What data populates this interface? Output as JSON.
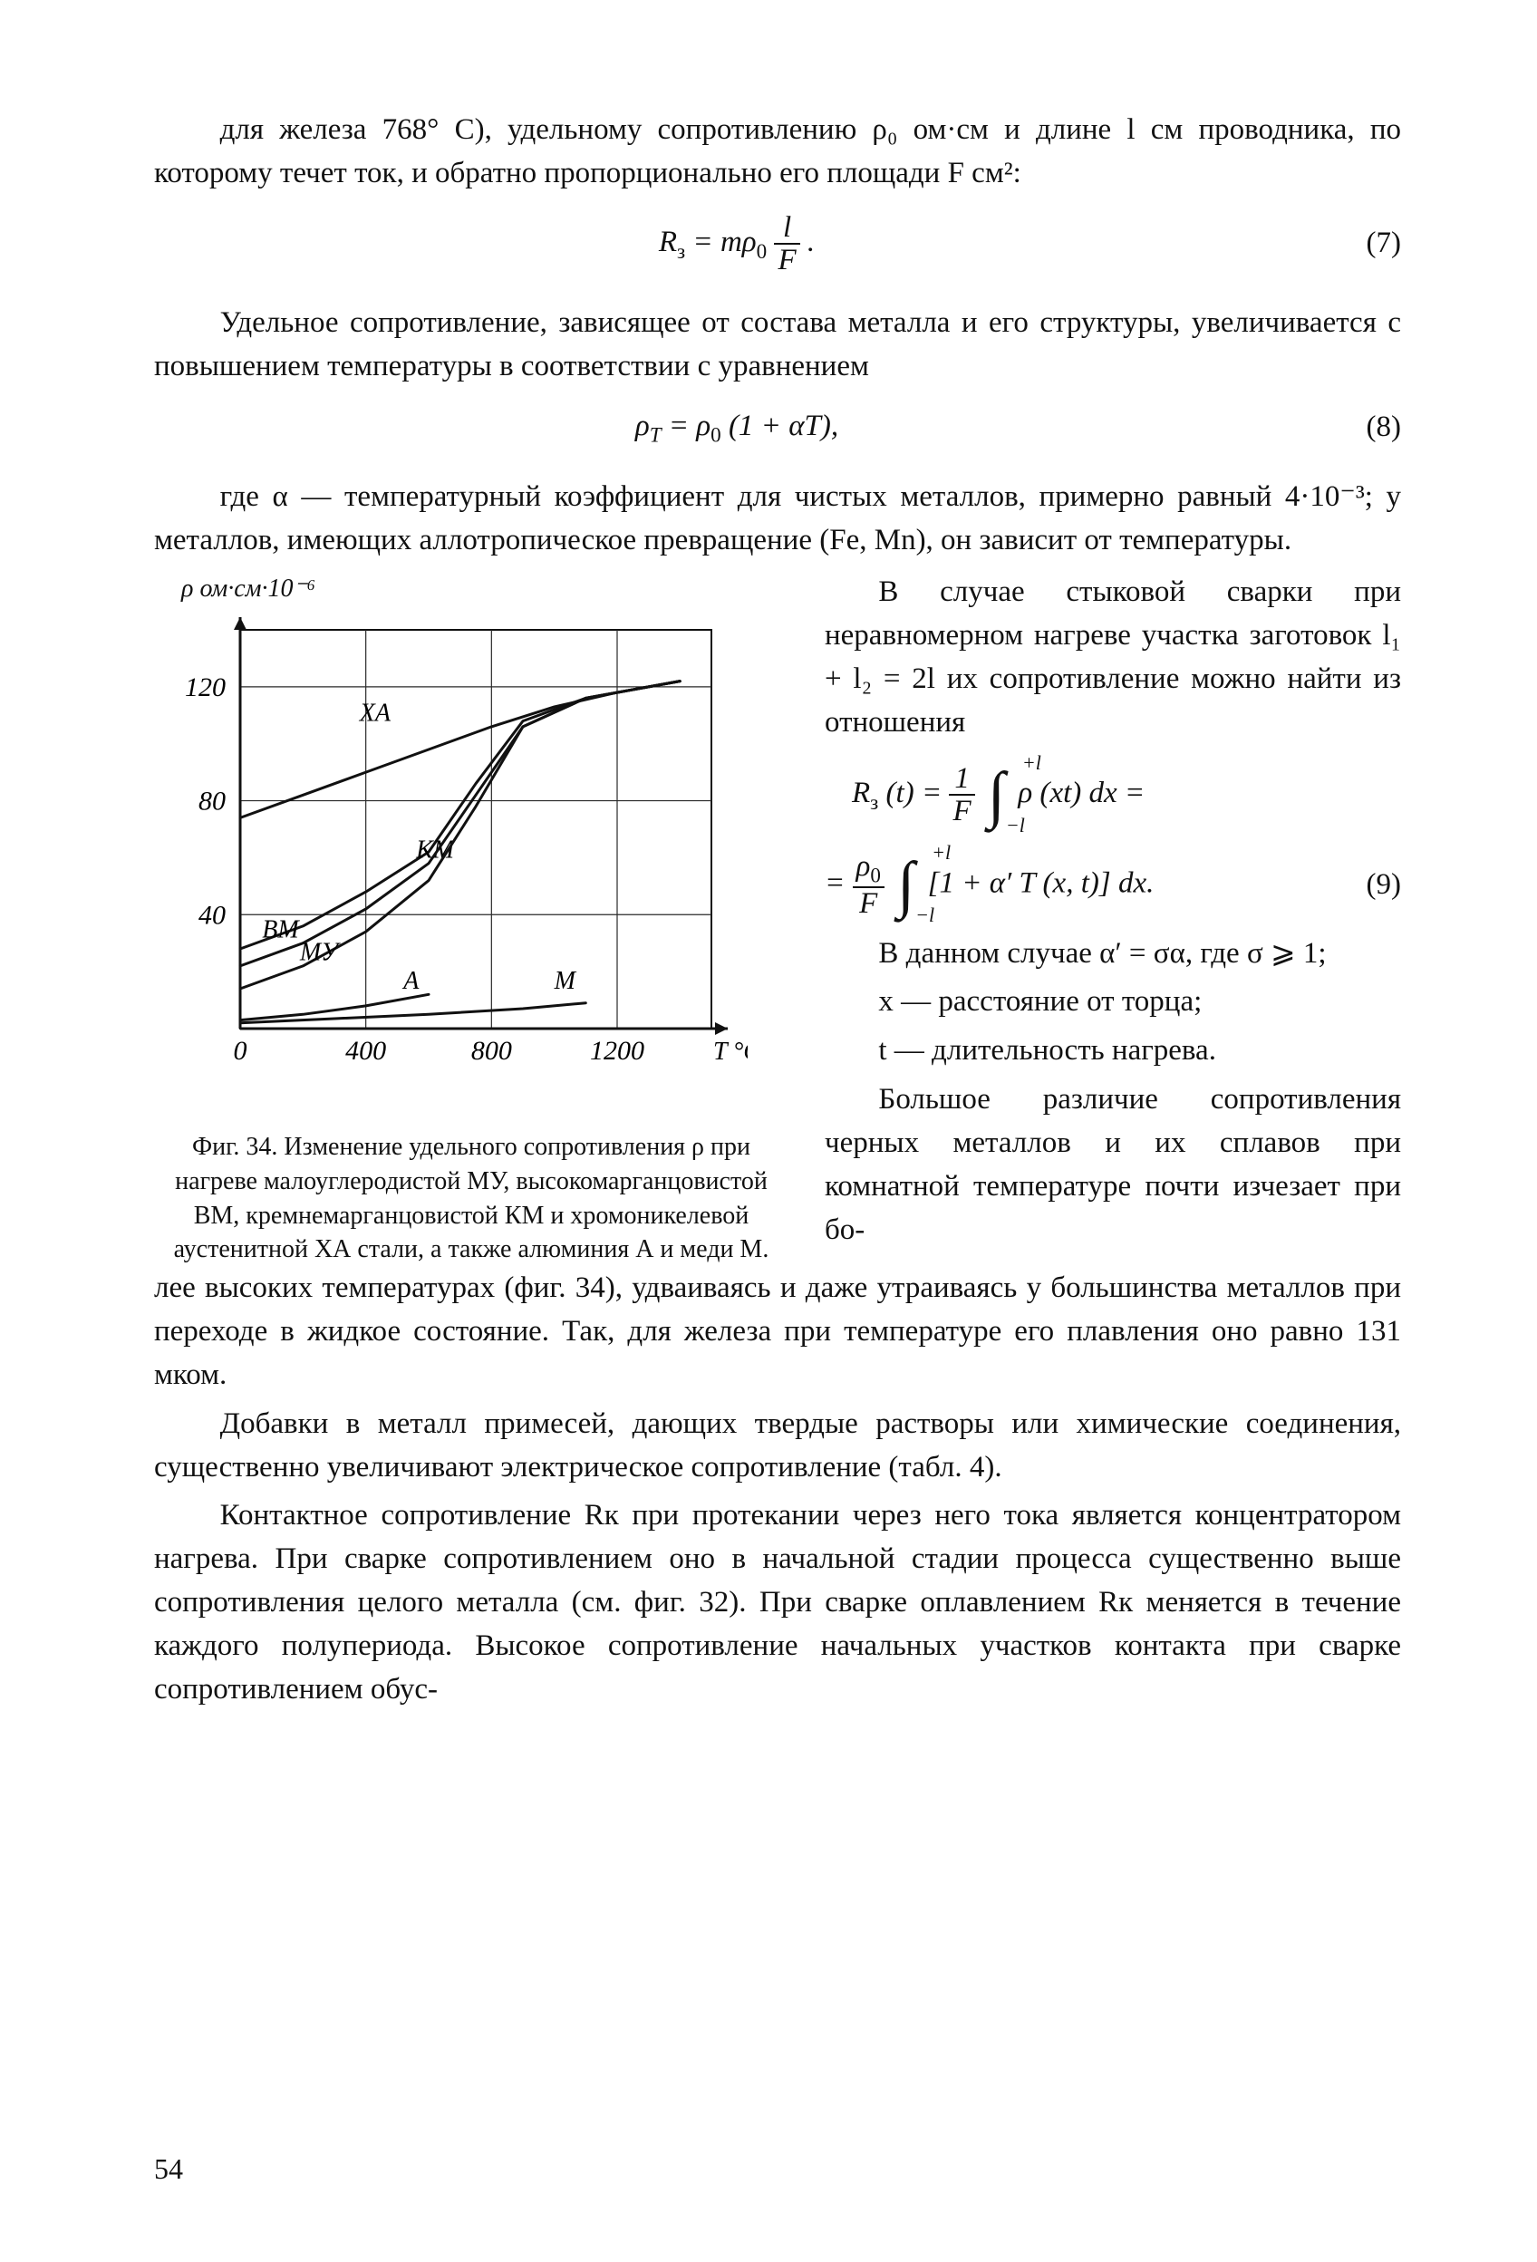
{
  "page_number": "54",
  "para1": "для железа 768° С), удельному сопротивлению ρ₀ ом·см и длине l см проводника, по которому течет ток, и обратно пропорционально его площади F см²:",
  "eq7_text": "Rₛ = mρ₀ · l / F .",
  "eq7_num": "(7)",
  "para2": "Удельное сопротивление, зависящее от состава металла и его структуры, увеличивается с повышением температуры в соответствии с уравнением",
  "eq8_text": "ρT = ρ₀ (1 + αT),",
  "eq8_num": "(8)",
  "para3": "где α — температурный коэффициент для чистых металлов, примерно равный 4·10⁻³; у металлов, имеющих аллотропическое превращение (Fe, Mn), он зависит от температуры.",
  "right_p1": "В случае стыковой сварки при неравномерном нагреве участка заготовок l₁ + l₂ = 2l их сопротивление можно найти из отношения",
  "eq9_line1": "Rₛ (t) = (1/F) ∫₋ₗ⁺ˡ ρ (xt) dx =",
  "eq9_line2": "= (ρ₀/F) ∫₋ₗ⁺ˡ [1 + α′ T (x, t)] dx.",
  "eq9_num": "(9)",
  "right_p2": "В данном случае α′ = σα, где σ ⩾ 1;",
  "right_p3a": "x — расстояние от торца;",
  "right_p3b": "t — длительность нагрева.",
  "right_p4_lead": "Большое различие сопротивления черных металлов и их сплавов при комнатной температуре почти изчезает при бо-",
  "para4_cont": "лее высоких температурах (фиг. 34), удваиваясь и даже утраиваясь у большинства металлов при переходе в жидкое состояние. Так, для железа при температуре его плавления оно равно 131 мком.",
  "para5": "Добавки в металл примесей, дающих твердые растворы или химические соединения, существенно увеличивают электрическое сопротивление (табл. 4).",
  "para6": "Контактное сопротивление Rк при протекании через него тока является концентратором нагрева. При сварке сопротивлением оно в начальной стадии процесса существенно выше сопротивления целого металла (см. фиг. 32). При сварке оплавлением Rк меняется в течение каждого полупериода. Высокое сопротивление начальных участков контакта при сварке сопротивлением обус-",
  "figure": {
    "caption": "Фиг. 34. Изменение удельного сопротивления ρ при нагреве малоуглеродистой МУ, высокомарганцовистой ВМ, кремнемарганцовистой КМ и хромоникелевой аустенитной ХА стали, а также алюминия А и меди М.",
    "y_axis_label": "ρ ом·см·10⁻⁶",
    "x_axis_label": "T °C",
    "x_ticks": [
      "0",
      "400",
      "800",
      "1200"
    ],
    "y_ticks": [
      "40",
      "80",
      "120"
    ],
    "x_range": [
      0,
      1500
    ],
    "y_range": [
      0,
      140
    ],
    "grid_color": "#2a2a2a",
    "line_color": "#111111",
    "line_width": 3,
    "background": "#ffffff",
    "series": {
      "XA": {
        "label": "ХА",
        "label_xy": [
          380,
          108
        ],
        "points": [
          [
            0,
            74
          ],
          [
            200,
            82
          ],
          [
            400,
            90
          ],
          [
            600,
            98
          ],
          [
            800,
            106
          ],
          [
            1000,
            113
          ],
          [
            1200,
            118
          ],
          [
            1400,
            122
          ]
        ]
      },
      "KM": {
        "label": "КМ",
        "label_xy": [
          560,
          60
        ],
        "points": [
          [
            0,
            28
          ],
          [
            200,
            36
          ],
          [
            400,
            48
          ],
          [
            600,
            62
          ],
          [
            750,
            86
          ],
          [
            900,
            108
          ],
          [
            1100,
            116
          ],
          [
            1400,
            122
          ]
        ]
      },
      "BM": {
        "label": "ВМ",
        "label_xy": [
          70,
          32
        ],
        "points": [
          [
            0,
            22
          ],
          [
            200,
            30
          ],
          [
            400,
            42
          ],
          [
            600,
            58
          ],
          [
            750,
            82
          ],
          [
            900,
            106
          ],
          [
            1100,
            116
          ],
          [
            1400,
            122
          ]
        ]
      },
      "MU": {
        "label": "МУ",
        "label_xy": [
          190,
          24
        ],
        "points": [
          [
            0,
            14
          ],
          [
            200,
            22
          ],
          [
            400,
            34
          ],
          [
            600,
            52
          ],
          [
            750,
            78
          ],
          [
            900,
            106
          ],
          [
            1100,
            116
          ],
          [
            1400,
            122
          ]
        ]
      },
      "A": {
        "label": "А",
        "label_xy": [
          520,
          14
        ],
        "points": [
          [
            0,
            3
          ],
          [
            200,
            5
          ],
          [
            400,
            8
          ],
          [
            600,
            12
          ]
        ]
      },
      "M": {
        "label": "М",
        "label_xy": [
          1000,
          14
        ],
        "points": [
          [
            0,
            2
          ],
          [
            300,
            3.5
          ],
          [
            600,
            5
          ],
          [
            900,
            7
          ],
          [
            1100,
            9
          ]
        ]
      }
    }
  }
}
